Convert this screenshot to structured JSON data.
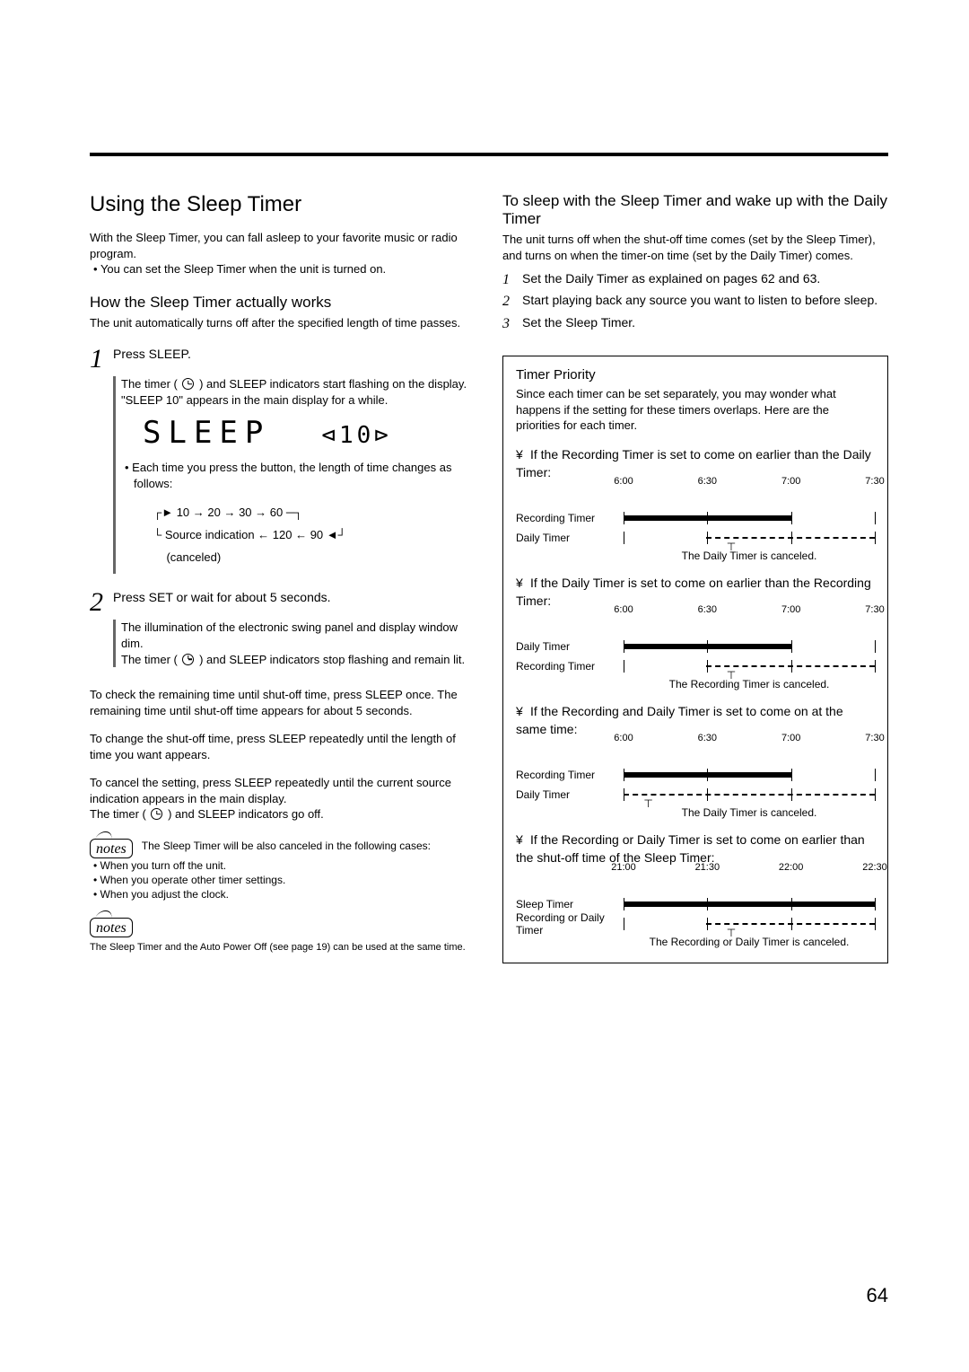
{
  "page_number": "64",
  "left": {
    "title": "Using the Sleep Timer",
    "intro": "With the Sleep Timer, you can fall asleep to your favorite music or radio program.",
    "intro_bullet": "You can set the Sleep Timer when the unit is turned on.",
    "how_title": "How the Sleep Timer actually works",
    "how_body": "The unit automatically turns off after the specified length of time passes.",
    "step1_lead": "Press SLEEP.",
    "step1_body1": "The timer ( ",
    "step1_body1b": " ) and SLEEP indicators start flashing on the display.",
    "step1_body2": "\"SLEEP 10\" appears in the main display for a while.",
    "display_text": "SLEEP",
    "display_ten": "10",
    "step1_body3": "Each time you press the button, the length of time changes as follows:",
    "cycle_top": "10 → 20 → 30 → 60",
    "cycle_bottom": "Source indication ← 120 ← 90",
    "cycle_cancel": "(canceled)",
    "step2_lead": "Press SET or wait for about 5 seconds.",
    "step2_body1": "The illumination of the electronic swing panel and display window dim.",
    "step2_body2a": "The timer ( ",
    "step2_body2b": " ) and SLEEP indicators stop flashing and remain lit.",
    "check": "To check the remaining time until shut-off time, press SLEEP once. The remaining time until shut-off time appears for about 5 seconds.",
    "change": "To change the shut-off time, press SLEEP repeatedly until the length of time you want appears.",
    "cancel1": "To cancel the setting, press SLEEP repeatedly until the current source indication appears in the main display.",
    "cancel2a": "The timer ( ",
    "cancel2b": " ) and SLEEP indicators go off.",
    "notes1_lead": "The Sleep Timer will be also canceled in the following cases:",
    "notes1_items": [
      "When you turn off the unit.",
      "When you operate other timer settings.",
      "When you adjust the clock."
    ],
    "notes2": "The Sleep Timer and the Auto Power Off (see page 19) can be used at the same time."
  },
  "right": {
    "sleep_wake_title": "To sleep with the Sleep Timer and wake up with the Daily Timer",
    "sleep_wake_body": "The unit turns off when the shut-off time comes (set by the Sleep Timer), and turns on when the timer-on time (set by the Daily Timer) comes.",
    "steps": [
      "Set the Daily Timer as explained on pages 62 and 63.",
      "Start playing back any source you want to listen to before sleep.",
      "Set the Sleep Timer."
    ],
    "box_title": "Timer Priority",
    "box_intro": "Since each timer can be set separately, you may wonder what happens if the setting for these timers overlaps. Here are the priorities for each timer.",
    "scenarios": [
      {
        "text": "If the Recording Timer is set to come on earlier than the Daily Timer:",
        "ticks": [
          "6:00",
          "6:30",
          "7:00",
          "7:30"
        ],
        "row1_label": "Recording Timer",
        "row2_label": "Daily Timer",
        "caption": "The Daily Timer is canceled.",
        "solid_start": 0,
        "solid_end": 67,
        "dash_start": 33,
        "dash_end": 100
      },
      {
        "text": "If the Daily Timer is set to come on earlier than the Recording Timer:",
        "ticks": [
          "6:00",
          "6:30",
          "7:00",
          "7:30"
        ],
        "row1_label": "Daily Timer",
        "row2_label": "Recording Timer",
        "caption": "The Recording Timer is canceled.",
        "solid_start": 0,
        "solid_end": 67,
        "dash_start": 33,
        "dash_end": 100
      },
      {
        "text": "If the Recording and Daily Timer is set to come on at the same time:",
        "ticks": [
          "6:00",
          "6:30",
          "7:00",
          "7:30"
        ],
        "row1_label": "Recording Timer",
        "row2_label": "Daily Timer",
        "caption": "The Daily Timer is canceled.",
        "solid_start": 0,
        "solid_end": 67,
        "dash_start": 0,
        "dash_end": 100
      },
      {
        "text": "If the Recording or Daily Timer is set to come on earlier than the shut-off time of the Sleep Timer:",
        "ticks": [
          "21:00",
          "21:30",
          "22:00",
          "22:30"
        ],
        "row1_label": "Sleep Timer",
        "row2_label": "Recording or Daily Timer",
        "caption": "The Recording or Daily Timer is canceled.",
        "solid_start": 0,
        "solid_end": 100,
        "dash_start": 33,
        "dash_end": 100
      }
    ]
  },
  "colors": {
    "text": "#000000",
    "background": "#ffffff",
    "rule": "#000000",
    "bar_gray": "#666666"
  }
}
